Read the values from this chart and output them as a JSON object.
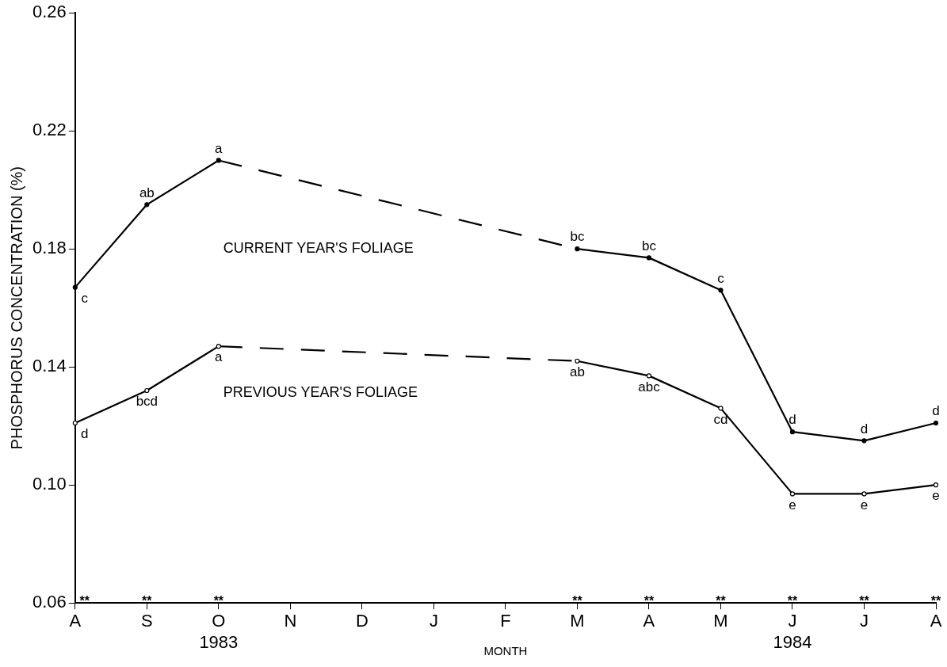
{
  "chart_data": {
    "type": "line",
    "xlabel": "MONTH",
    "ylabel": "PHOSPHORUS CONCENTRATION (%)",
    "categories": [
      "A",
      "S",
      "O\n1983",
      "N",
      "D",
      "J",
      "F",
      "M",
      "A",
      "M",
      "J\n1984",
      "J",
      "A"
    ],
    "ylim": [
      0.06,
      0.26
    ],
    "yticks": [
      {
        "value": 0.06,
        "label": "0.06"
      },
      {
        "value": 0.1,
        "label": "0.10"
      },
      {
        "value": 0.14,
        "label": "0.14"
      },
      {
        "value": 0.18,
        "label": "0.18"
      },
      {
        "value": 0.22,
        "label": "0.22"
      },
      {
        "value": 0.26,
        "label": "0.26"
      }
    ],
    "grid": false,
    "legend": false,
    "marker": "circle",
    "line_style": "solid",
    "series": [
      {
        "name": "CURRENT YEAR'S FOLIAGE",
        "color": "#000000",
        "values": [
          0.167,
          0.195,
          0.21,
          null,
          null,
          null,
          null,
          0.18,
          0.177,
          0.166,
          0.118,
          0.115,
          0.121
        ],
        "value_labels": [
          "c",
          "ab",
          "a",
          null,
          null,
          null,
          null,
          "bc",
          "bc",
          "c",
          "d",
          "d",
          "d"
        ]
      },
      {
        "name": "PREVIOUS YEAR'S FOLIAGE",
        "color": "#000000",
        "values": [
          0.121,
          0.132,
          0.147,
          null,
          null,
          null,
          null,
          0.142,
          0.137,
          0.126,
          0.097,
          0.097,
          0.1
        ],
        "value_labels": [
          "d",
          "bcd",
          "a",
          null,
          null,
          null,
          null,
          "ab",
          "abc",
          "cd",
          "e",
          "e",
          "e"
        ]
      }
    ],
    "annotations": [
      "**",
      "**",
      "**",
      "**",
      "**",
      "**",
      "**",
      "**",
      "**"
    ]
  }
}
